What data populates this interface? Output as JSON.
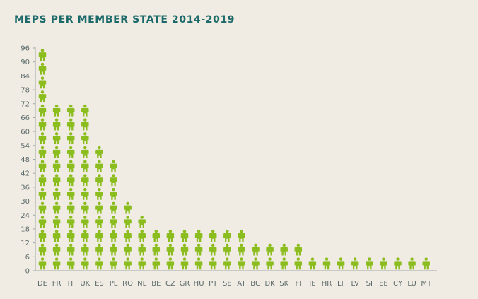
{
  "chart_data": {
    "type": "bar",
    "title": "MEPS PER MEMBER STATE 2014-2019",
    "xlabel": "",
    "ylabel": "",
    "ylim": [
      0,
      96
    ],
    "yticks": [
      0,
      6,
      12,
      18,
      24,
      30,
      36,
      42,
      48,
      54,
      60,
      66,
      72,
      78,
      84,
      90,
      96
    ],
    "categories": [
      "DE",
      "FR",
      "IT",
      "UK",
      "ES",
      "PL",
      "RO",
      "NL",
      "BE",
      "CZ",
      "GR",
      "HU",
      "PT",
      "SE",
      "AT",
      "BG",
      "DK",
      "SK",
      "FI",
      "IE",
      "HR",
      "LT",
      "LV",
      "SI",
      "EE",
      "CY",
      "LU",
      "MT"
    ],
    "values": [
      96,
      74,
      73,
      73,
      54,
      51,
      32,
      26,
      21,
      21,
      21,
      21,
      21,
      20,
      18,
      17,
      13,
      13,
      13,
      11,
      11,
      11,
      8,
      8,
      6,
      6,
      6,
      6
    ],
    "icon": "person-icon",
    "mep_per_icon": 6,
    "bar_color": "#8cbd1f",
    "title_color": "#1d6a6a"
  }
}
